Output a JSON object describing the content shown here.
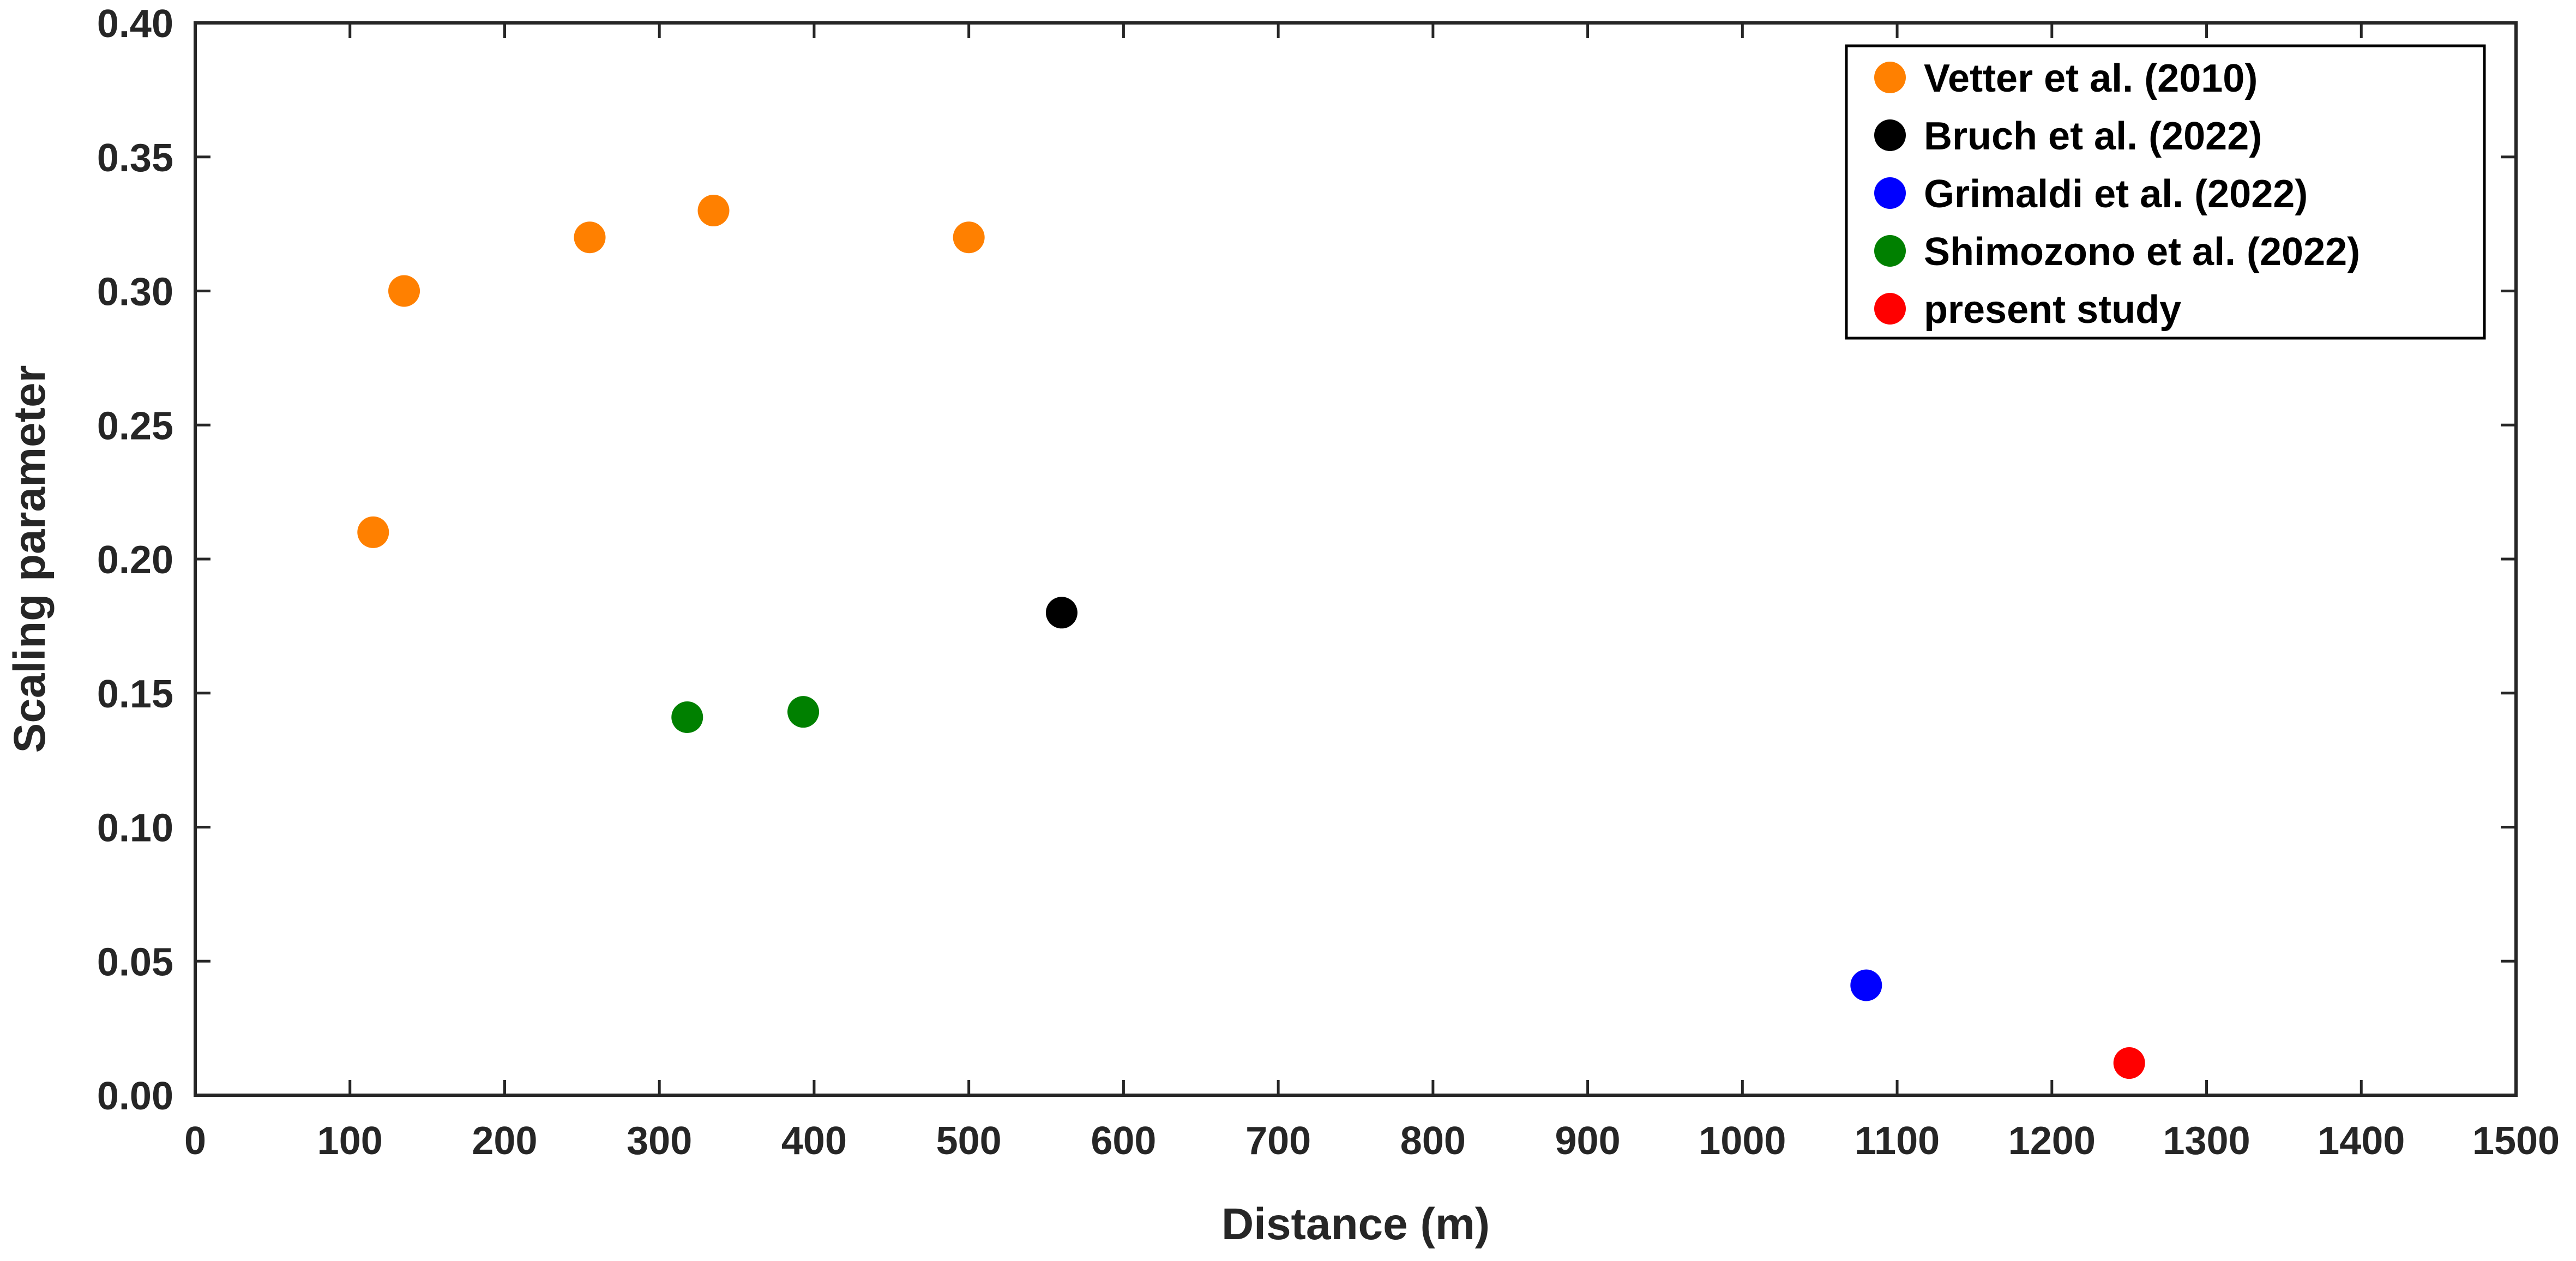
{
  "chart_data": {
    "type": "scatter",
    "title": "",
    "xlabel": "Distance (m)",
    "ylabel": "Scaling parameter",
    "xlim": [
      0,
      1500
    ],
    "ylim": [
      0,
      0.4
    ],
    "xticks": [
      0,
      100,
      200,
      300,
      400,
      500,
      600,
      700,
      800,
      900,
      1000,
      1100,
      1200,
      1300,
      1400,
      1500
    ],
    "xtick_labels": [
      "0",
      "100",
      "200",
      "300",
      "400",
      "500",
      "600",
      "700",
      "800",
      "900",
      "1000",
      "1100",
      "1200",
      "1300",
      "1400",
      "1500"
    ],
    "yticks": [
      0,
      0.05,
      0.1,
      0.15,
      0.2,
      0.25,
      0.3,
      0.35,
      0.4
    ],
    "ytick_labels": [
      "0.00",
      "0.05",
      "0.10",
      "0.15",
      "0.20",
      "0.25",
      "0.30",
      "0.35",
      "0.40"
    ],
    "grid": false,
    "legend_position": "top-right",
    "series": [
      {
        "name": "Vetter et al. (2010)",
        "color": "#ff8000",
        "points": [
          {
            "x": 115,
            "y": 0.21
          },
          {
            "x": 135,
            "y": 0.3
          },
          {
            "x": 255,
            "y": 0.32
          },
          {
            "x": 335,
            "y": 0.33
          },
          {
            "x": 500,
            "y": 0.32
          }
        ]
      },
      {
        "name": "Bruch et al. (2022)",
        "color": "#000000",
        "points": [
          {
            "x": 560,
            "y": 0.18
          }
        ]
      },
      {
        "name": "Grimaldi et al. (2022)",
        "color": "#0000ff",
        "points": [
          {
            "x": 1080,
            "y": 0.041
          }
        ]
      },
      {
        "name": "Shimozono et al. (2022)",
        "color": "#008000",
        "points": [
          {
            "x": 318,
            "y": 0.141
          },
          {
            "x": 393,
            "y": 0.143
          }
        ]
      },
      {
        "name": "present study",
        "color": "#ff0000",
        "points": [
          {
            "x": 1250,
            "y": 0.012
          }
        ]
      }
    ]
  }
}
